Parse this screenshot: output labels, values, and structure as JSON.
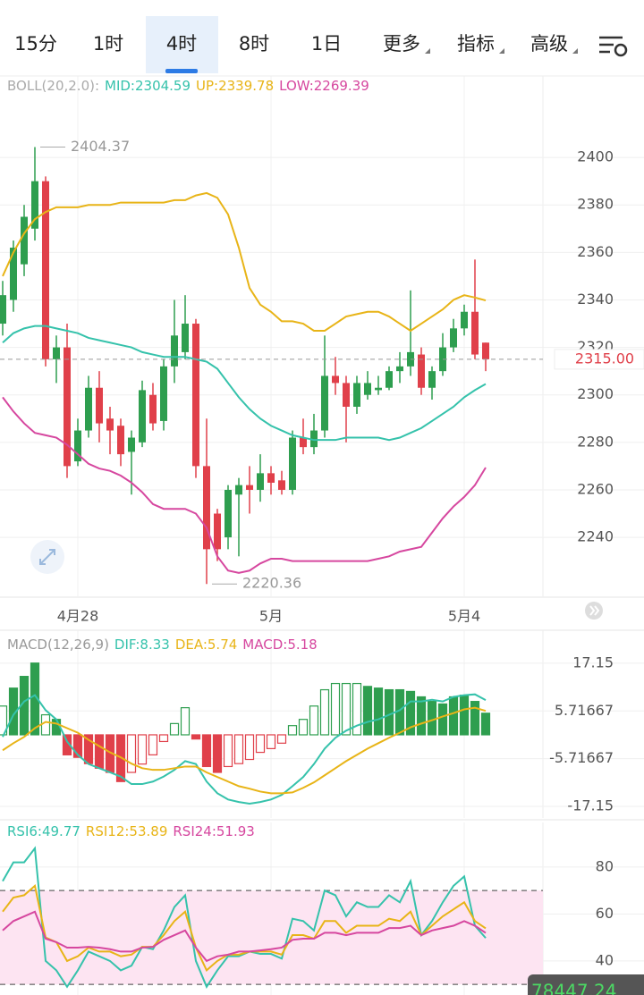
{
  "tabs": [
    {
      "label": "15分"
    },
    {
      "label": "1时"
    },
    {
      "label": "4时"
    },
    {
      "label": "8时"
    },
    {
      "label": "1日"
    },
    {
      "label": "更多",
      "menu": true
    },
    {
      "label": "指标",
      "menu": true
    },
    {
      "label": "高级",
      "menu": true
    }
  ],
  "active_tab": 2,
  "ticker": "78447.24",
  "chart_data": [
    {
      "type": "candlestick",
      "indicator": "BOLL(20,2.0):",
      "categories": [
        null,
        null,
        null,
        null,
        null,
        null,
        null,
        "4月28",
        null,
        null,
        null,
        null,
        null,
        null,
        null,
        null,
        null,
        null,
        null,
        null,
        null,
        null,
        null,
        null,
        null,
        "5月",
        null,
        null,
        null,
        null,
        null,
        null,
        null,
        null,
        null,
        null,
        null,
        null,
        null,
        null,
        null,
        null,
        null,
        "5月4",
        null,
        null
      ],
      "open": [
        2330,
        2340,
        2355,
        2370,
        2390,
        2315,
        2320,
        2272,
        2285,
        2303,
        2290,
        2287,
        2276,
        2280,
        2300,
        2289,
        2312,
        2318,
        2330,
        2270,
        2250,
        2240,
        2258,
        2262,
        2260,
        2267,
        2264,
        2260,
        2282,
        2278,
        2285,
        2308,
        2305,
        2295,
        2300,
        2302,
        2303,
        2310,
        2312,
        2317,
        2303,
        2310,
        2320,
        2328,
        2335,
        2322
      ],
      "high": [
        2348,
        2365,
        2380,
        2404.37,
        2392,
        2325,
        2330,
        2290,
        2308,
        2310,
        2295,
        2290,
        2285,
        2306,
        2305,
        2315,
        2340,
        2342,
        2332,
        2290,
        2252,
        2262,
        2265,
        2270,
        2275,
        2270,
        2268,
        2285,
        2290,
        2292,
        2325,
        2316,
        2308,
        2308,
        2310,
        2308,
        2312,
        2318,
        2344,
        2320,
        2312,
        2326,
        2332,
        2338,
        2357,
        2322
      ],
      "low": [
        2325,
        2335,
        2350,
        2365,
        2312,
        2305,
        2265,
        2270,
        2282,
        2280,
        2275,
        2270,
        2258,
        2278,
        2285,
        2285,
        2305,
        2315,
        2265,
        2220.36,
        2230,
        2235,
        2232,
        2250,
        2255,
        2258,
        2258,
        2258,
        2275,
        2275,
        2282,
        2300,
        2280,
        2292,
        2298,
        2300,
        2302,
        2305,
        2308,
        2300,
        2298,
        2308,
        2318,
        2325,
        2315,
        2310
      ],
      "close": [
        2342,
        2362,
        2375,
        2390,
        2315,
        2320,
        2270,
        2285,
        2303,
        2288,
        2285,
        2275,
        2282,
        2302,
        2288,
        2312,
        2325,
        2330,
        2270,
        2235,
        2235,
        2260,
        2262,
        2260,
        2267,
        2263,
        2260,
        2282,
        2278,
        2285,
        2308,
        2305,
        2295,
        2305,
        2305,
        2303,
        2310,
        2312,
        2318,
        2303,
        2310,
        2320,
        2328,
        2335,
        2317,
        2315
      ],
      "up_color": "#2e9e4f",
      "down_color": "#e0404a",
      "series": [
        {
          "name": "MID",
          "label": "MID:2304.59",
          "color": "#35c2ab",
          "values": [
            2322,
            2326,
            2328,
            2329,
            2329,
            2328,
            2327,
            2326,
            2324,
            2323,
            2322,
            2321,
            2320,
            2318,
            2317,
            2316,
            2316,
            2316,
            2315,
            2314,
            2311,
            2305,
            2299,
            2294,
            2290,
            2287,
            2285,
            2283,
            2282,
            2281,
            2281,
            2281,
            2282,
            2282,
            2282,
            2282,
            2281,
            2282,
            2284,
            2286,
            2289,
            2292,
            2295,
            2299,
            2302,
            2304.59
          ]
        },
        {
          "name": "UP",
          "label": "UP:2339.78",
          "color": "#e8b417",
          "values": [
            2350,
            2360,
            2368,
            2374,
            2377,
            2379,
            2379,
            2379,
            2380,
            2380,
            2380,
            2381,
            2381,
            2381,
            2381,
            2381,
            2382,
            2382,
            2384,
            2385,
            2383,
            2376,
            2362,
            2345,
            2338,
            2335,
            2331,
            2331,
            2330,
            2327,
            2327,
            2330,
            2333,
            2334,
            2335,
            2335,
            2333,
            2330,
            2327,
            2330,
            2333,
            2336,
            2340,
            2342,
            2341,
            2339.78
          ]
        },
        {
          "name": "LOW",
          "label": "LOW:2269.39",
          "color": "#d6479f",
          "values": [
            2299,
            2293,
            2288,
            2284,
            2283,
            2282,
            2279,
            2275,
            2271,
            2269,
            2268,
            2266,
            2263,
            2259,
            2254,
            2252,
            2252,
            2252,
            2250,
            2244,
            2232,
            2226,
            2225,
            2226,
            2229,
            2231,
            2231,
            2230,
            2230,
            2230,
            2230,
            2230,
            2230,
            2230,
            2230,
            2231,
            2232,
            2234,
            2235,
            2236,
            2242,
            2248,
            2253,
            2257,
            2262,
            2269.39
          ]
        }
      ],
      "last_price": 2315,
      "last_price_label": "2315.00",
      "last_price_color": "#e0404a",
      "ylim": [
        2214.8,
        2434.3
      ],
      "yticks": [
        2240,
        2260,
        2280,
        2300,
        2320,
        2340,
        2360,
        2380,
        2400
      ],
      "grid": true
    },
    {
      "type": "macd",
      "indicator": "MACD(12,26,9)",
      "hist_label": "MACD:5.18",
      "hist_color": "#d6479f",
      "values": [
        6.9,
        11.2,
        14,
        17.2,
        4.8,
        3.7,
        -4.8,
        -5.4,
        -6.9,
        -8,
        -9,
        -11.2,
        -9,
        -7,
        -4.8,
        -1.6,
        2.7,
        6.5,
        -1,
        -7.6,
        -9,
        -7.6,
        -6.9,
        -5.9,
        -4.2,
        -3.3,
        -2,
        2.2,
        3.7,
        6.9,
        10.8,
        12.3,
        12.3,
        12.3,
        11.6,
        11.2,
        10.8,
        10.8,
        10.4,
        9.1,
        8,
        7.4,
        9.1,
        9.5,
        8,
        5.18
      ],
      "styles": [
        "hollow",
        "solid",
        "solid",
        "solid",
        "hollow",
        "solid",
        "solid",
        "solid",
        "solid",
        "solid",
        "solid",
        "solid",
        "hollow",
        "hollow",
        "hollow",
        "hollow",
        "hollow",
        "hollow",
        "solid",
        "solid",
        "solid",
        "hollow",
        "hollow",
        "hollow",
        "hollow",
        "hollow",
        "hollow",
        "hollow",
        "hollow",
        "hollow",
        "hollow",
        "hollow",
        "hollow",
        "hollow",
        "solid",
        "solid",
        "solid",
        "solid",
        "solid",
        "solid",
        "solid",
        "solid",
        "solid",
        "solid",
        "solid",
        "solid"
      ],
      "up_color": "#2e9e4f",
      "down_color": "#e0404a",
      "series": [
        {
          "name": "DIF",
          "label": "DIF:8.33",
          "color": "#35c2ab",
          "values": [
            -0.5,
            4.8,
            8,
            9.5,
            5.9,
            3.7,
            -1.6,
            -4.8,
            -7,
            -8,
            -9,
            -10,
            -11.8,
            -11.8,
            -11.2,
            -10,
            -8.4,
            -6.3,
            -7,
            -11.2,
            -14,
            -15.5,
            -16.1,
            -16.5,
            -16.1,
            -15.5,
            -14.4,
            -12.3,
            -10.1,
            -7,
            -3.3,
            -0.7,
            1,
            2.2,
            3.1,
            3.7,
            4.8,
            5.9,
            8,
            8,
            8.4,
            8,
            9.1,
            9.5,
            9.7,
            8.33
          ]
        },
        {
          "name": "DEA",
          "label": "DEA:5.74",
          "color": "#e8b417",
          "values": [
            -3.7,
            -2,
            -0.5,
            1.6,
            3.1,
            2.7,
            1.6,
            0.5,
            -1.2,
            -2.7,
            -4.2,
            -5.4,
            -6.9,
            -8,
            -8.4,
            -8.4,
            -8,
            -7.6,
            -7.6,
            -9,
            -10.1,
            -11.2,
            -12.3,
            -12.9,
            -13.6,
            -14,
            -14,
            -13.8,
            -12.7,
            -11.4,
            -9.7,
            -8,
            -6.3,
            -4.8,
            -3.3,
            -2,
            -0.7,
            0.5,
            1.8,
            2.7,
            3.5,
            4.4,
            5.2,
            6.1,
            6.5,
            5.74
          ]
        }
      ],
      "ylim": [
        -19.93,
        25.06
      ],
      "yticks": [
        17.15,
        5.71667,
        -5.71667,
        -17.15
      ],
      "grid": true
    },
    {
      "type": "line",
      "series": [
        {
          "name": "RSI6",
          "label": "RSI6:49.77",
          "color": "#35c2ab",
          "values": [
            74,
            82,
            82,
            88,
            40,
            36,
            29,
            36,
            44,
            42,
            40,
            36,
            38,
            46,
            45,
            53,
            63,
            68,
            40,
            29,
            36,
            42,
            42,
            44,
            43,
            43,
            41,
            58,
            57,
            53,
            70,
            68,
            59,
            65,
            63,
            63,
            68,
            65,
            74,
            51,
            57,
            65,
            72,
            76,
            55,
            49.77
          ]
        },
        {
          "name": "RSI12",
          "label": "RSI12:53.89",
          "color": "#e8b417",
          "values": [
            61,
            67,
            68,
            72,
            50,
            48,
            40,
            42,
            45.7,
            44,
            44,
            42,
            42.7,
            46,
            46,
            51,
            57,
            61,
            45.7,
            36,
            40,
            42.7,
            42.7,
            44,
            44,
            44,
            42.7,
            51,
            51,
            49.5,
            57,
            57,
            52,
            55,
            55,
            55,
            58,
            57,
            61,
            51,
            55,
            59,
            62,
            65,
            57,
            53.89
          ]
        },
        {
          "name": "RSI24",
          "label": "RSI24:51.93",
          "color": "#d6479f",
          "values": [
            53,
            57,
            59,
            61,
            49.5,
            48,
            45.7,
            45.7,
            46,
            45.7,
            45,
            44,
            44,
            45.7,
            46,
            49,
            51,
            53,
            45.7,
            40,
            42,
            42.7,
            44,
            44,
            44.5,
            45,
            45.7,
            49,
            49.5,
            49.5,
            52,
            52,
            51,
            52,
            52,
            52,
            54,
            54,
            55,
            51,
            53,
            54,
            55,
            57,
            55,
            51.93
          ]
        }
      ],
      "band": [
        30,
        70
      ],
      "band_color": "#fde4f2",
      "ylim": [
        25.5,
        99
      ],
      "yticks": [
        40,
        60,
        80
      ],
      "grid": true
    }
  ]
}
